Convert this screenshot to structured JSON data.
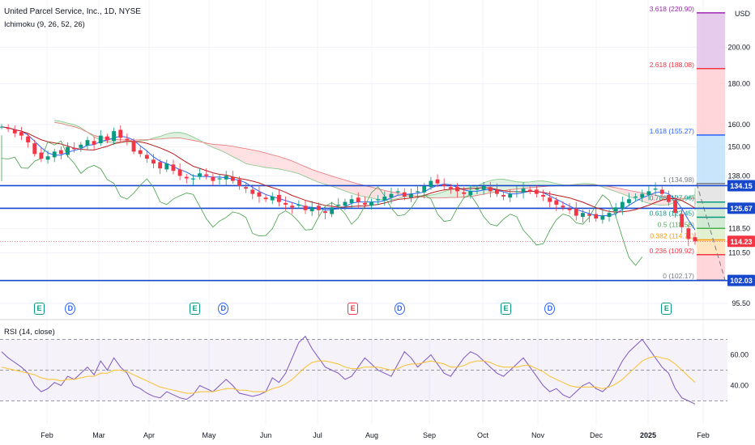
{
  "header": {
    "title": "United Parcel Service, Inc., 1D, NYSE",
    "indicator": "Ichimoku (9, 26, 52, 26)",
    "rsi_label": "RSI (14, close)",
    "currency": "USD"
  },
  "colors": {
    "up": "#089981",
    "down": "#f23645",
    "kumo_bull": "#c8e6c9",
    "kumo_bear": "#ffcdd2",
    "tenkan": "#2962ff",
    "kijun": "#b71c1c",
    "chikou": "#43a047",
    "rsi": "#7e57c2",
    "rsi_ma": "#fbc02d",
    "hline": "#1848cc"
  },
  "chart_data": {
    "type": "candlestick",
    "title": "United Parcel Service, Inc., 1D, NYSE",
    "ylim": [
      95.5,
      225
    ],
    "y_ticks": [
      95.5,
      110.5,
      118.5,
      138.0,
      150.0,
      160.0,
      180.0,
      200.0
    ],
    "x_ticks": [
      "Feb",
      "Mar",
      "Apr",
      "May",
      "Jun",
      "Jul",
      "Aug",
      "Sep",
      "Oct",
      "Nov",
      "Dec",
      "2025",
      "Feb"
    ],
    "price_markers": [
      {
        "label": "134.15",
        "value": 134.15,
        "color": "#1848cc"
      },
      {
        "label": "125.67",
        "value": 125.67,
        "color": "#1848cc"
      },
      {
        "label": "114.23",
        "value": 114.23,
        "color": "#f23645"
      },
      {
        "label": "102.03",
        "value": 102.03,
        "color": "#1848cc"
      }
    ],
    "horizontal_lines": [
      134.15,
      125.67,
      102.03
    ],
    "last_price": 114.23,
    "fibonacci": [
      {
        "label": "3.618 (220.90)",
        "value": 220.9,
        "color": "#9c27b0"
      },
      {
        "label": "2.618 (188.08)",
        "value": 188.08,
        "color": "#f23645"
      },
      {
        "label": "1.618 (155.27)",
        "value": 155.27,
        "color": "#2962ff"
      },
      {
        "label": "1 (134.98)",
        "value": 134.98,
        "color": "#787b86"
      },
      {
        "label": "0.786 (127.96)",
        "value": 127.96,
        "color": "#089981"
      },
      {
        "label": "0.618 (122.45)",
        "value": 122.45,
        "color": "#089981"
      },
      {
        "label": "0.5 (118.58)",
        "value": 118.58,
        "color": "#4caf50"
      },
      {
        "label": "0.382 (114.71)",
        "value": 114.71,
        "color": "#ff9800"
      },
      {
        "label": "0.236 (109.92)",
        "value": 109.92,
        "color": "#f23645"
      },
      {
        "label": "0 (102.17)",
        "value": 102.17,
        "color": "#787b86"
      }
    ],
    "events": [
      {
        "type": "E",
        "month_pos": 0.75,
        "bad": false
      },
      {
        "type": "D",
        "month_pos": 1.35,
        "bad": false
      },
      {
        "type": "E",
        "month_pos": 3.75,
        "bad": false
      },
      {
        "type": "D",
        "month_pos": 4.3,
        "bad": false
      },
      {
        "type": "E",
        "month_pos": 6.8,
        "bad": true
      },
      {
        "type": "D",
        "month_pos": 7.7,
        "bad": false
      },
      {
        "type": "E",
        "month_pos": 9.75,
        "bad": false
      },
      {
        "type": "D",
        "month_pos": 10.6,
        "bad": false
      },
      {
        "type": "E",
        "month_pos": 12.85,
        "bad": false
      }
    ],
    "close_series": [
      159,
      158,
      156,
      155,
      152,
      147,
      145,
      146,
      148,
      147,
      150,
      149,
      151,
      153,
      151,
      155,
      153,
      157,
      154,
      153,
      148,
      147,
      145,
      143,
      141,
      143,
      140,
      138,
      137,
      137,
      139,
      138,
      136,
      137,
      138,
      136,
      134,
      133,
      131,
      130,
      129,
      130,
      128,
      127,
      126,
      127,
      125,
      126,
      125,
      124,
      126,
      127,
      128,
      129,
      128,
      127,
      128,
      129,
      130,
      131,
      132,
      130,
      131,
      132,
      134,
      136,
      135,
      134,
      133,
      132,
      131,
      132,
      133,
      134,
      132,
      131,
      130,
      131,
      132,
      133,
      132,
      131,
      130,
      128,
      127,
      126,
      125,
      123,
      124,
      123,
      122,
      123,
      124,
      126,
      128,
      129,
      130,
      131,
      132,
      133,
      131,
      128,
      124,
      119,
      115,
      114.23
    ],
    "rsi": {
      "name": "RSI (14, close)",
      "ylim": [
        25,
        75
      ],
      "upper": 70,
      "middle": 50,
      "lower": 30,
      "y_ticks": [
        40.0,
        60.0
      ],
      "values": [
        62,
        58,
        55,
        52,
        48,
        40,
        36,
        38,
        42,
        40,
        46,
        44,
        48,
        52,
        47,
        56,
        50,
        58,
        52,
        48,
        40,
        38,
        35,
        33,
        32,
        36,
        34,
        32,
        31,
        34,
        40,
        38,
        36,
        40,
        44,
        40,
        35,
        34,
        33,
        34,
        36,
        45,
        42,
        48,
        58,
        68,
        72,
        64,
        58,
        52,
        50,
        48,
        44,
        46,
        52,
        58,
        54,
        50,
        48,
        46,
        54,
        62,
        58,
        52,
        56,
        60,
        54,
        48,
        46,
        52,
        58,
        62,
        60,
        56,
        52,
        48,
        46,
        50,
        54,
        58,
        52,
        46,
        40,
        36,
        38,
        34,
        32,
        36,
        40,
        42,
        38,
        36,
        40,
        48,
        56,
        62,
        66,
        70,
        64,
        58,
        52,
        48,
        38,
        32,
        30,
        28
      ],
      "ma_values": [
        52,
        51,
        50,
        49,
        48,
        47,
        45,
        44,
        44,
        43,
        44,
        44,
        45,
        46,
        46,
        48,
        48,
        50,
        50,
        49,
        47,
        45,
        43,
        41,
        39,
        38,
        37,
        36,
        35,
        35,
        36,
        36,
        36,
        37,
        38,
        38,
        37,
        37,
        36,
        36,
        36,
        38,
        39,
        41,
        44,
        48,
        52,
        55,
        56,
        56,
        55,
        54,
        52,
        51,
        51,
        52,
        52,
        52,
        51,
        50,
        51,
        53,
        54,
        54,
        55,
        56,
        55,
        54,
        52,
        52,
        53,
        55,
        56,
        56,
        55,
        53,
        52,
        52,
        52,
        53,
        53,
        51,
        49,
        46,
        44,
        42,
        40,
        39,
        39,
        39,
        39,
        38,
        39,
        41,
        44,
        48,
        52,
        56,
        58,
        59,
        58,
        57,
        54,
        50,
        46,
        42
      ]
    }
  }
}
